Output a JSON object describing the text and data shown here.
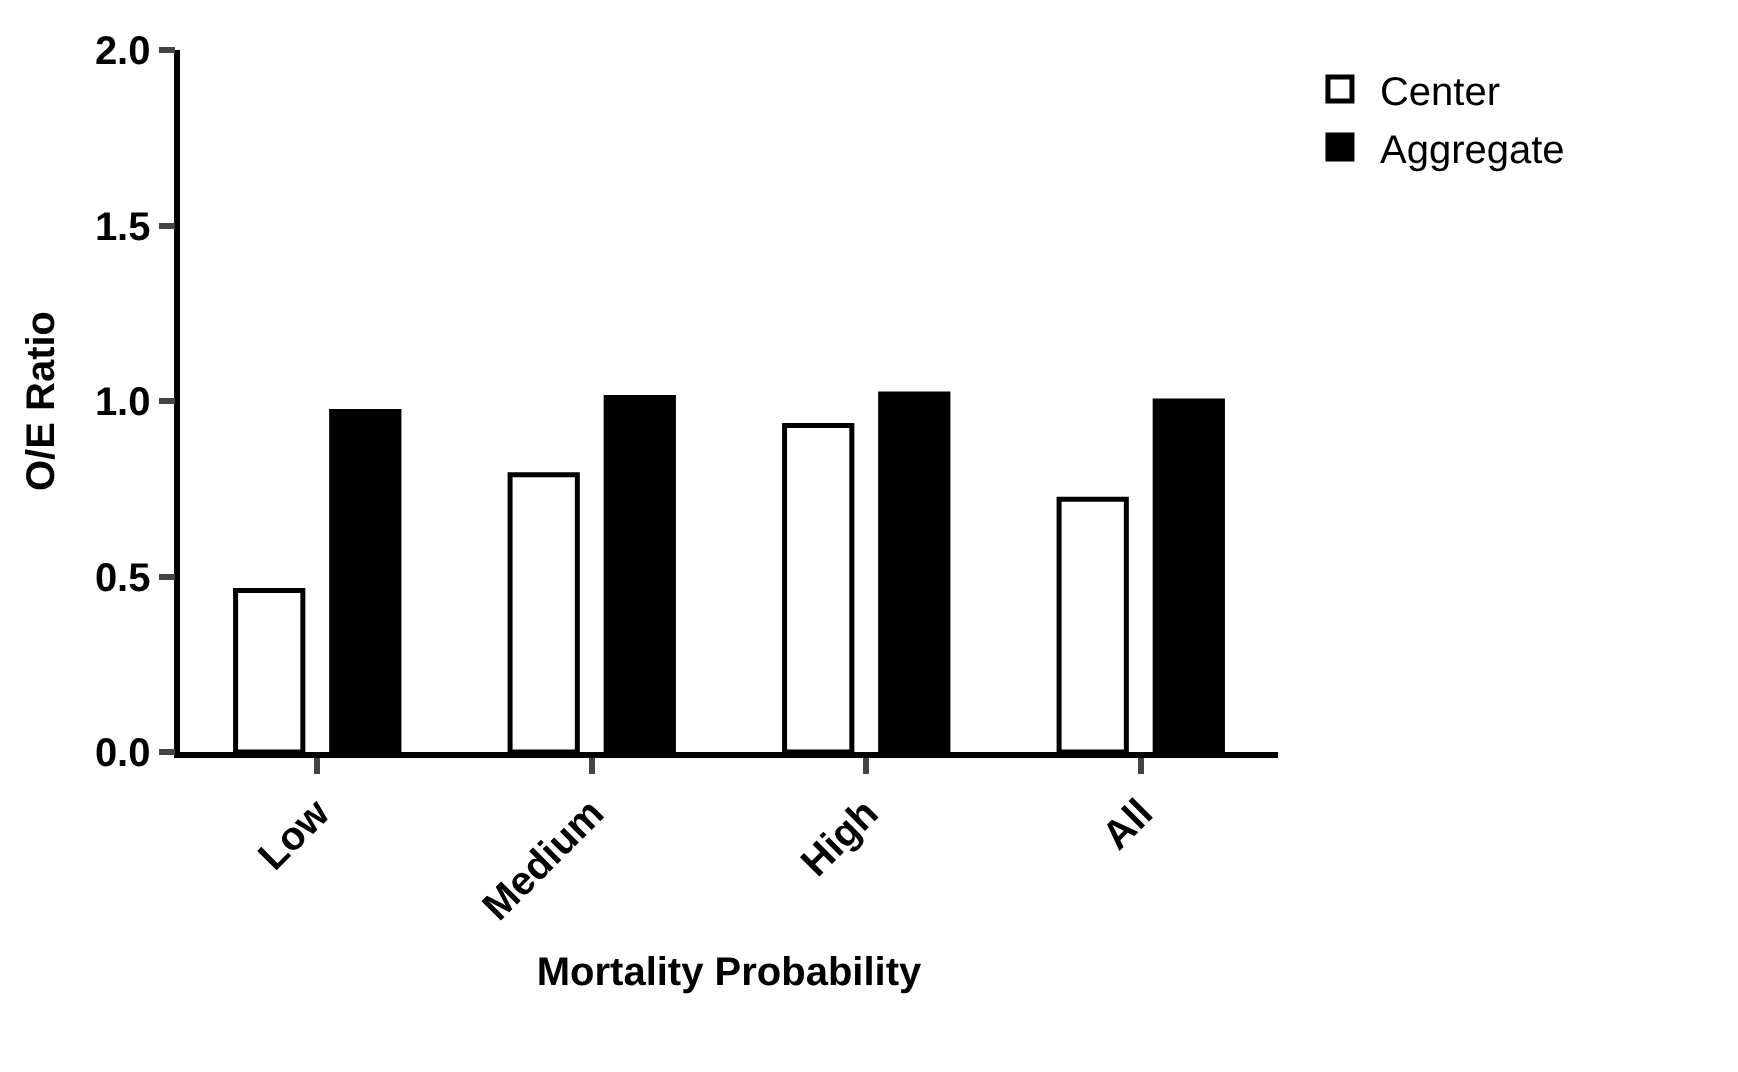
{
  "chart_data": {
    "type": "bar",
    "xlabel": "Mortality Probability",
    "ylabel": "O/E Ratio",
    "categories": [
      "Low",
      "Medium",
      "High",
      "All"
    ],
    "series": [
      {
        "name": "Center",
        "color": "#ffffff",
        "values": [
          0.46,
          0.79,
          0.93,
          0.72
        ]
      },
      {
        "name": "Aggregate",
        "color": "#000000",
        "values": [
          0.97,
          1.01,
          1.02,
          1.0
        ]
      }
    ],
    "ylim": [
      0,
      2.0
    ],
    "yticks": [
      {
        "value": 0,
        "label": "0.0"
      },
      {
        "value": 0.5,
        "label": "0.5"
      },
      {
        "value": 1,
        "label": "1.0"
      },
      {
        "value": 1.5,
        "label": "1.5"
      },
      {
        "value": 2,
        "label": "2.0"
      }
    ],
    "legend": "top right"
  }
}
